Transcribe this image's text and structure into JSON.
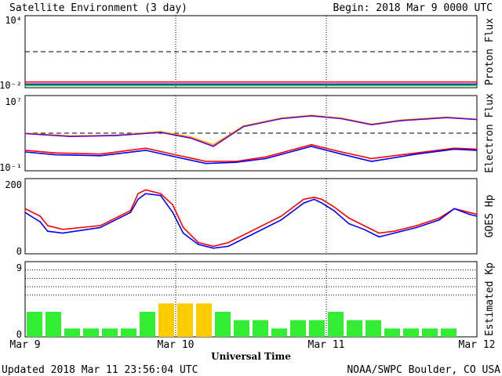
{
  "header": {
    "title": "Satellite Environment (3 day)",
    "begin": "Begin:  2018 Mar 9 0000 UTC"
  },
  "footer": {
    "updated": "Updated 2018 Mar 11 23:56:04 UTC",
    "credit": "NOAA/SWPC Boulder, CO USA"
  },
  "colors": {
    "red": "#ff0000",
    "blue": "#0000ff",
    "green": "#00dd00",
    "orange": "#ffa500",
    "purple": "#6a00cc",
    "kp_green": "#33ee33",
    "kp_yellow": "#ffcc00"
  },
  "chart_data": [
    {
      "type": "line",
      "title": "Proton Flux",
      "ylabel": "Proton Flux",
      "yscale": "log",
      "yticks": [
        "10⁴",
        "10⁻²"
      ],
      "ylim": [
        0.01,
        10000
      ],
      "threshold": 10,
      "x_range_days": [
        0,
        3
      ],
      "series": [
        {
          "color": "red",
          "x": [
            0,
            0.5,
            1,
            1.5,
            2,
            2.5,
            3
          ],
          "y": [
            0.03,
            0.03,
            0.03,
            0.03,
            0.03,
            0.03,
            0.03
          ]
        },
        {
          "color": "blue",
          "x": [
            0,
            0.5,
            1,
            1.5,
            2,
            2.5,
            3
          ],
          "y": [
            0.02,
            0.02,
            0.02,
            0.02,
            0.02,
            0.02,
            0.02
          ]
        },
        {
          "color": "green",
          "x": [
            0,
            0.5,
            1,
            1.5,
            2,
            2.5,
            3
          ],
          "y": [
            0.015,
            0.015,
            0.015,
            0.015,
            0.015,
            0.015,
            0.015
          ]
        }
      ]
    },
    {
      "type": "line",
      "title": "Electron Flux",
      "ylabel": "Electron Flux",
      "yscale": "log",
      "yticks": [
        "10⁷",
        "10⁻¹"
      ],
      "ylim": [
        0.1,
        10000000
      ],
      "threshold": 1000,
      "x_range_days": [
        0,
        3
      ],
      "series": [
        {
          "color": "orange",
          "x": [
            0,
            0.3,
            0.6,
            0.9,
            1.1,
            1.25,
            1.45,
            1.7,
            1.9,
            2.1,
            2.3,
            2.5,
            2.8,
            3
          ],
          "y": [
            1000,
            500,
            600,
            1500,
            400,
            60,
            6000,
            40000,
            80000,
            40000,
            9000,
            25000,
            50000,
            30000
          ]
        },
        {
          "color": "purple",
          "x": [
            0,
            0.3,
            0.6,
            0.9,
            1.1,
            1.25,
            1.45,
            1.7,
            1.9,
            2.1,
            2.3,
            2.5,
            2.8,
            3
          ],
          "y": [
            900,
            450,
            550,
            1200,
            300,
            40,
            5000,
            35000,
            70000,
            35000,
            8000,
            22000,
            45000,
            28000
          ]
        },
        {
          "color": "red",
          "x": [
            0,
            0.2,
            0.5,
            0.8,
            1.0,
            1.2,
            1.4,
            1.6,
            1.9,
            2.1,
            2.3,
            2.6,
            2.85,
            3
          ],
          "y": [
            15,
            8,
            6,
            25,
            5,
            1,
            1,
            3,
            60,
            10,
            2,
            8,
            25,
            20
          ]
        },
        {
          "color": "blue",
          "x": [
            0,
            0.2,
            0.5,
            0.8,
            1.0,
            1.2,
            1.4,
            1.6,
            1.9,
            2.1,
            2.3,
            2.6,
            2.85,
            3
          ],
          "y": [
            10,
            5,
            4,
            15,
            3,
            0.6,
            0.8,
            2,
            40,
            6,
            1,
            6,
            20,
            15
          ]
        }
      ]
    },
    {
      "type": "line",
      "title": "GOES Hp",
      "ylabel": "GOES Hp",
      "yscale": "linear",
      "yticks": [
        "200",
        "0"
      ],
      "ylim": [
        0,
        200
      ],
      "x_range_days": [
        0,
        3
      ],
      "series": [
        {
          "color": "red",
          "x": [
            0,
            0.1,
            0.15,
            0.25,
            0.5,
            0.7,
            0.75,
            0.8,
            0.9,
            0.98,
            1.05,
            1.15,
            1.25,
            1.35,
            1.5,
            1.7,
            1.85,
            1.92,
            1.97,
            2.05,
            2.15,
            2.25,
            2.35,
            2.45,
            2.6,
            2.75,
            2.85,
            2.95,
            3
          ],
          "y": [
            120,
            100,
            75,
            65,
            75,
            115,
            160,
            170,
            160,
            130,
            70,
            30,
            20,
            30,
            60,
            100,
            145,
            150,
            145,
            125,
            95,
            75,
            55,
            60,
            75,
            95,
            120,
            110,
            105
          ]
        },
        {
          "color": "blue",
          "x": [
            0,
            0.1,
            0.15,
            0.25,
            0.5,
            0.7,
            0.75,
            0.8,
            0.9,
            0.98,
            1.05,
            1.15,
            1.25,
            1.35,
            1.5,
            1.7,
            1.85,
            1.92,
            1.97,
            2.05,
            2.15,
            2.25,
            2.35,
            2.45,
            2.6,
            2.75,
            2.85,
            2.95,
            3
          ],
          "y": [
            110,
            85,
            60,
            55,
            70,
            110,
            145,
            160,
            155,
            110,
            55,
            25,
            15,
            20,
            50,
            90,
            135,
            145,
            135,
            115,
            80,
            65,
            45,
            55,
            70,
            90,
            120,
            105,
            100
          ]
        }
      ]
    },
    {
      "type": "bar",
      "title": "Estimated Kp",
      "ylabel": "Estimated Kp",
      "yticks": [
        "9",
        "0"
      ],
      "ylim": [
        0,
        9
      ],
      "gridlines": [
        5,
        6,
        7,
        8,
        9
      ],
      "values": [
        3,
        3,
        1,
        1,
        1,
        1,
        3,
        4,
        4,
        4,
        3,
        2,
        2,
        1,
        2,
        2,
        3,
        2,
        2,
        1,
        1,
        1,
        1,
        0
      ],
      "colors": [
        "kp_green",
        "kp_green",
        "kp_green",
        "kp_green",
        "kp_green",
        "kp_green",
        "kp_green",
        "kp_yellow",
        "kp_yellow",
        "kp_yellow",
        "kp_green",
        "kp_green",
        "kp_green",
        "kp_green",
        "kp_green",
        "kp_green",
        "kp_green",
        "kp_green",
        "kp_green",
        "kp_green",
        "kp_green",
        "kp_green",
        "kp_green",
        "kp_green"
      ],
      "xticks": [
        "Mar 9",
        "Mar 10",
        "Mar 11",
        "Mar 12"
      ],
      "xlabel": "Universal Time"
    }
  ]
}
